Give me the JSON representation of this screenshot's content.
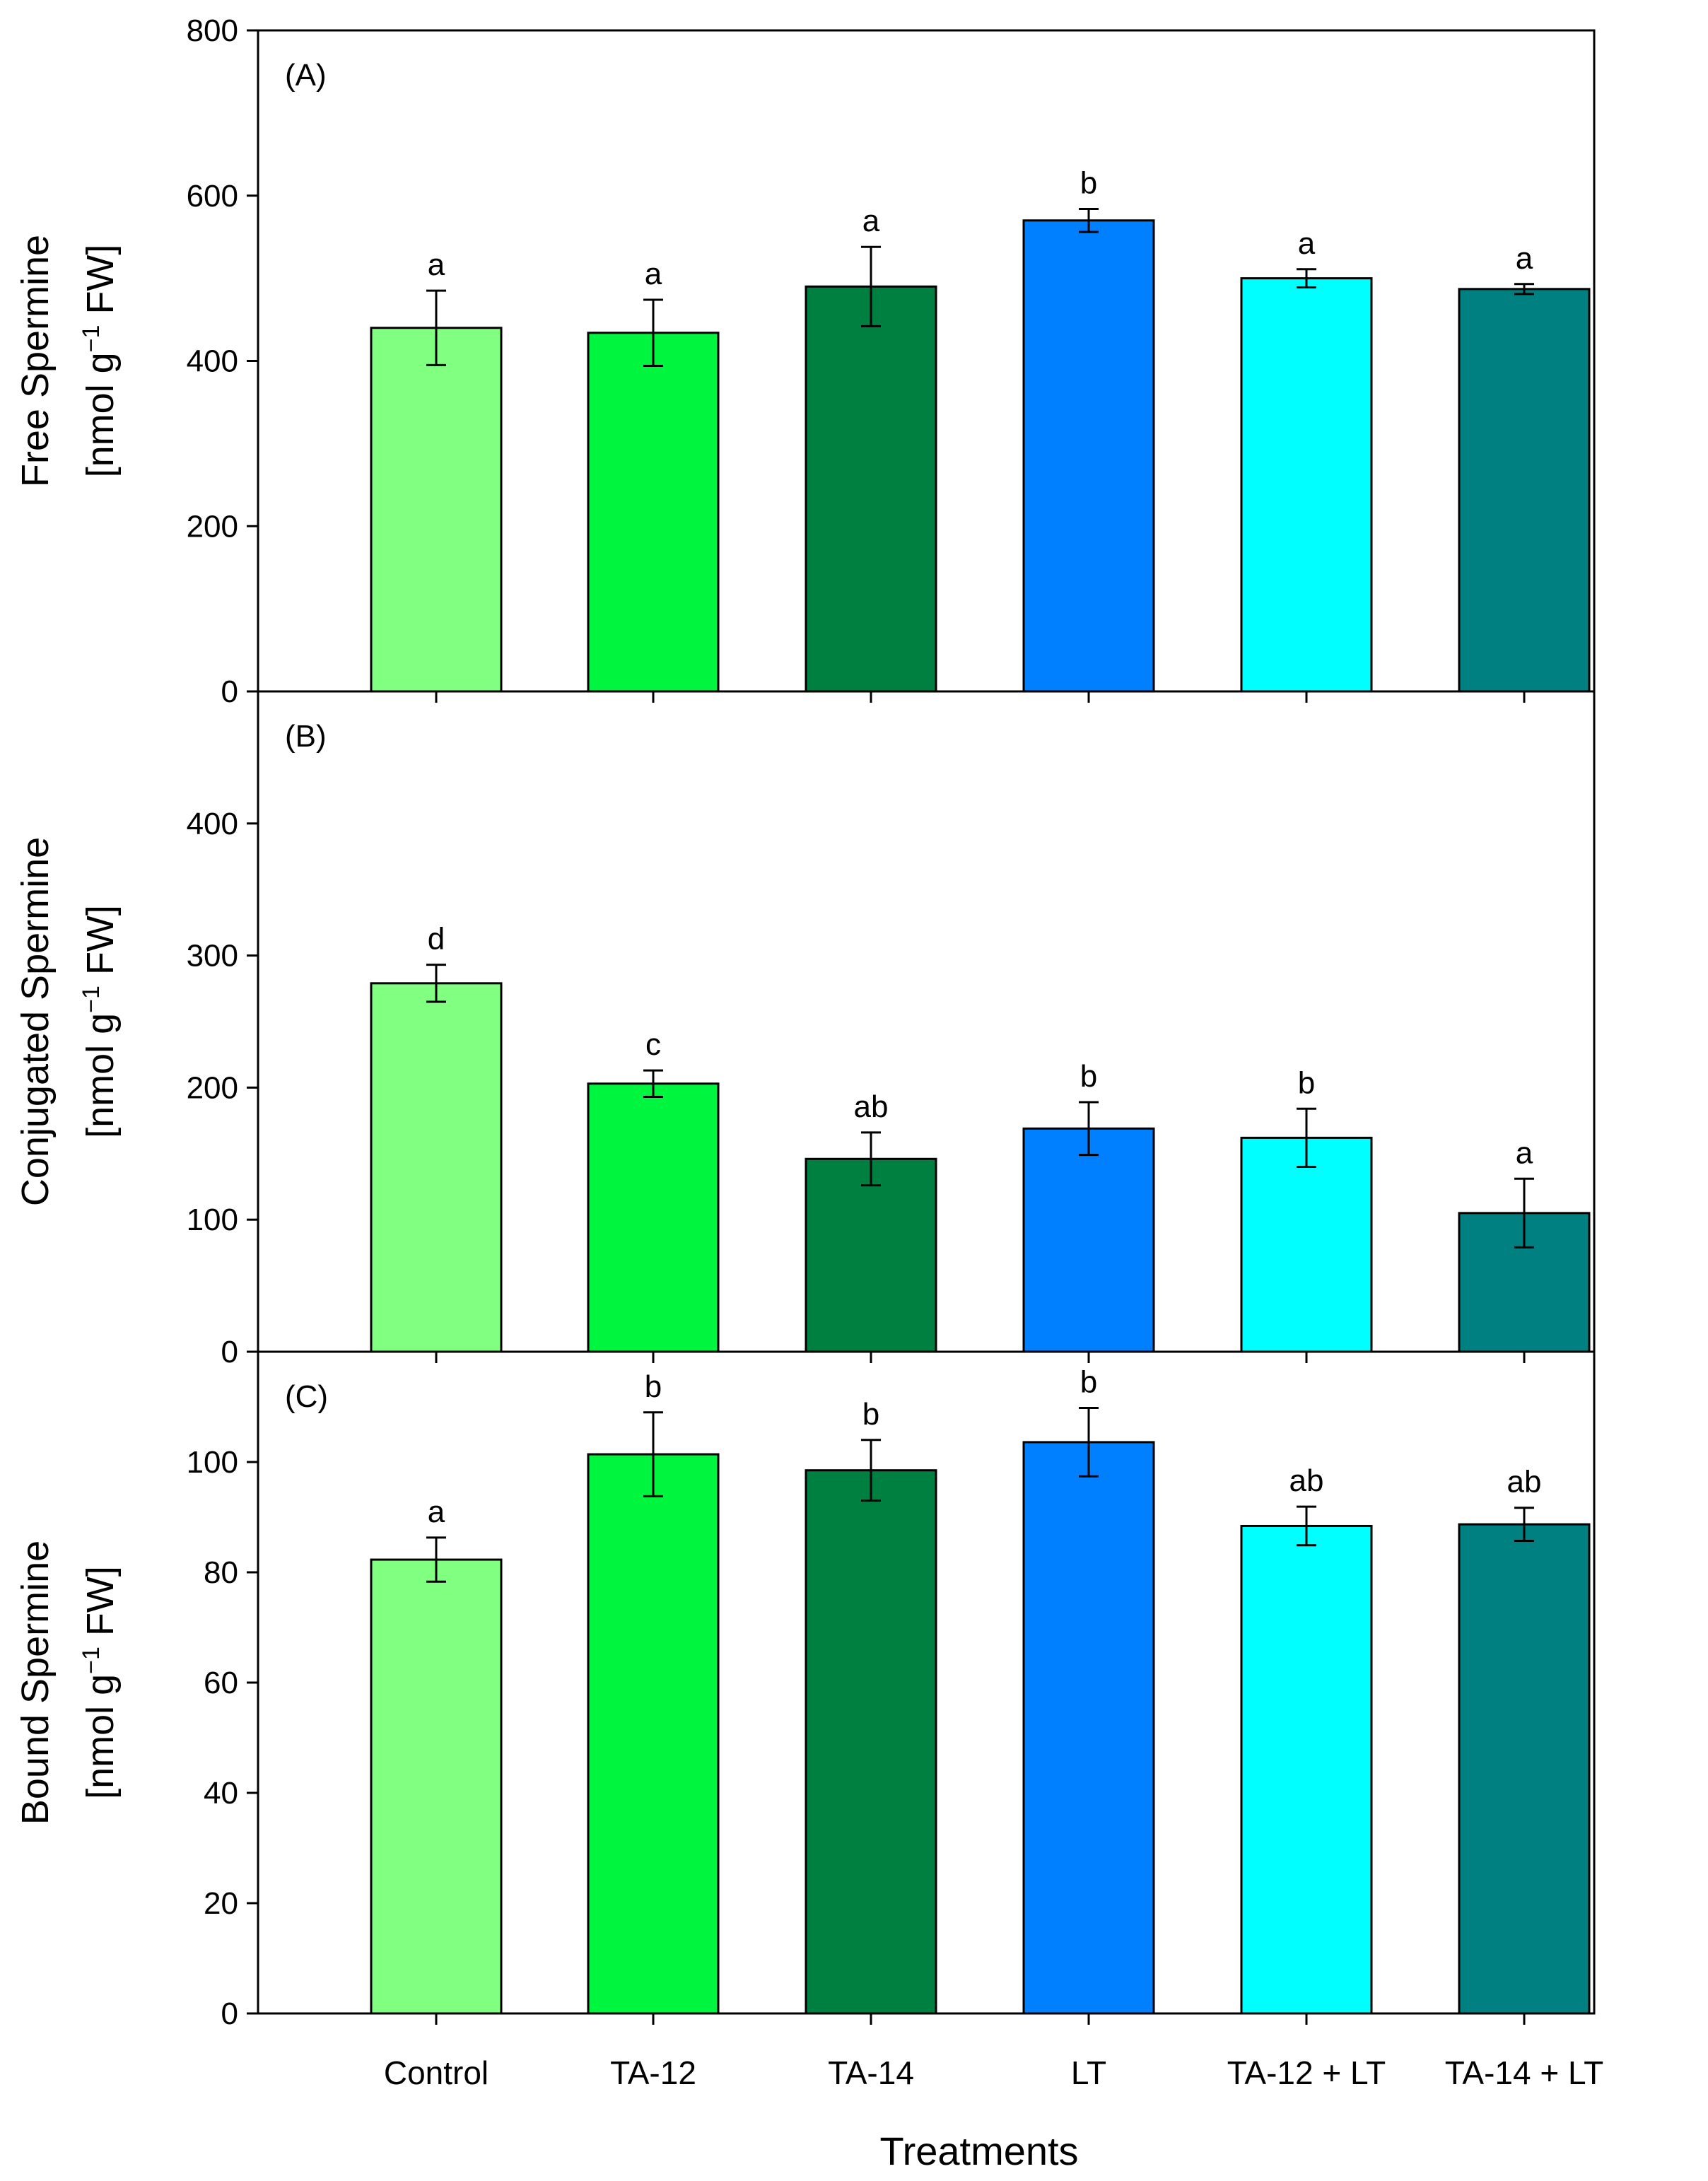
{
  "figure": {
    "xlabel": "Treatments",
    "categories": [
      "Control",
      "TA-12",
      "TA-14",
      "LT",
      "TA-12 + LT",
      "TA-14 + LT"
    ],
    "bar_colors": [
      "#80ff80",
      "#00f53f",
      "#008040",
      "#0080ff",
      "#00ffff",
      "#008080"
    ]
  },
  "chart_data": [
    {
      "type": "bar",
      "panel": "(A)",
      "title": "",
      "ylabel_line1": "Free Spermine",
      "ylabel_line2_prefix": "[nmol g",
      "ylabel_superscript": "−1",
      "ylabel_line2_suffix": " FW]",
      "ylim": [
        0,
        800
      ],
      "yticks": [
        0,
        200,
        400,
        600,
        800
      ],
      "categories": [
        "Control",
        "TA-12",
        "TA-14",
        "LT",
        "TA-12 + LT",
        "TA-14 + LT"
      ],
      "values": [
        440,
        434,
        490,
        570,
        500,
        487
      ],
      "errors": [
        45,
        40,
        48,
        14,
        11,
        6
      ],
      "letters": [
        "a",
        "a",
        "a",
        "b",
        "a",
        "a"
      ]
    },
    {
      "type": "bar",
      "panel": "(B)",
      "title": "",
      "ylabel_line1": "Conjugated Spermine",
      "ylabel_line2_prefix": "[nmol g",
      "ylabel_superscript": "−1",
      "ylabel_line2_suffix": " FW]",
      "ylim": [
        0,
        500
      ],
      "yticks": [
        0,
        100,
        200,
        300,
        400
      ],
      "categories": [
        "Control",
        "TA-12",
        "TA-14",
        "LT",
        "TA-12 + LT",
        "TA-14 + LT"
      ],
      "values": [
        279,
        203,
        146,
        169,
        162,
        105
      ],
      "errors": [
        14,
        10,
        20,
        20,
        22,
        26
      ],
      "letters": [
        "d",
        "c",
        "ab",
        "b",
        "b",
        "a"
      ]
    },
    {
      "type": "bar",
      "panel": "(C)",
      "title": "",
      "ylabel_line1": "Bound Spermine",
      "ylabel_line2_prefix": "[nmol g",
      "ylabel_superscript": "−1",
      "ylabel_line2_suffix": " FW]",
      "ylim": [
        0,
        120
      ],
      "yticks": [
        0,
        20,
        40,
        60,
        80,
        100
      ],
      "categories": [
        "Control",
        "TA-12",
        "TA-14",
        "LT",
        "TA-12 + LT",
        "TA-14 + LT"
      ],
      "values": [
        82.3,
        101.4,
        98.5,
        103.6,
        88.4,
        88.7
      ],
      "errors": [
        4.0,
        7.6,
        5.5,
        6.2,
        3.5,
        3.0
      ],
      "letters": [
        "a",
        "b",
        "b",
        "b",
        "ab",
        "ab"
      ]
    }
  ]
}
